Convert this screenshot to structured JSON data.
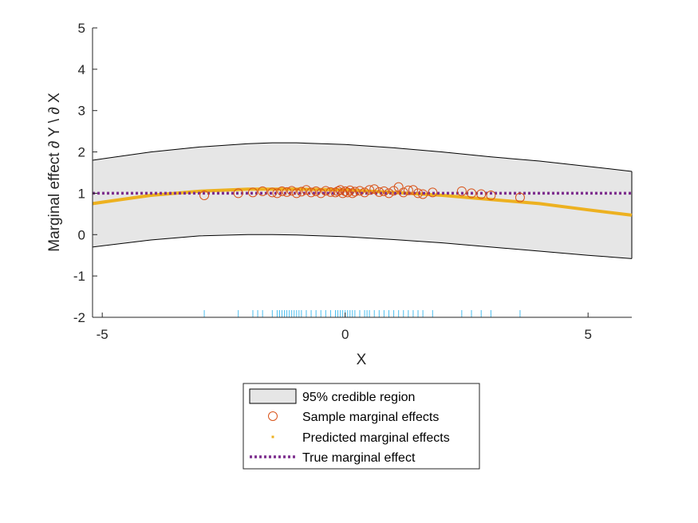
{
  "chart_data": {
    "type": "line",
    "xlabel": "X",
    "ylabel": "Marginal effect ∂ Y \\ ∂ X",
    "xlim": [
      -5.2,
      5.9
    ],
    "ylim": [
      -2,
      5
    ],
    "xticks": [
      -5,
      0,
      5
    ],
    "xtick_labels": [
      "-5",
      "0",
      "5"
    ],
    "yticks": [
      -2,
      -1,
      0,
      1,
      2,
      3,
      4,
      5
    ],
    "ytick_labels": [
      "-2",
      "-1",
      "0",
      "1",
      "2",
      "3",
      "4",
      "5"
    ],
    "grid": false,
    "legend_position": "bottom-center",
    "legend": [
      "95% credible region",
      "Sample marginal effects",
      "Predicted marginal effects",
      "True marginal effect"
    ],
    "colors": {
      "credible_region_fill": "#e6e6e6",
      "credible_region_edge": "#000000",
      "samples": "#d95319",
      "predicted": "#edb120",
      "true_effect": "#7e2f8e",
      "rug": "#4dbeee"
    },
    "credible_region": {
      "x": [
        -5.2,
        -4,
        -3,
        -2,
        -1.5,
        -1,
        0,
        1,
        2,
        3,
        4,
        5,
        5.9
      ],
      "upper": [
        1.8,
        2.0,
        2.12,
        2.2,
        2.22,
        2.22,
        2.18,
        2.1,
        2.0,
        1.88,
        1.78,
        1.65,
        1.53
      ],
      "lower": [
        -0.3,
        -0.13,
        -0.03,
        0.0,
        0.0,
        -0.01,
        -0.05,
        -0.12,
        -0.2,
        -0.3,
        -0.4,
        -0.5,
        -0.58
      ]
    },
    "series": [
      {
        "name": "Predicted marginal effects",
        "type": "line",
        "x": [
          -5.2,
          -4,
          -3,
          -2,
          -1,
          0,
          1,
          2,
          3,
          4,
          5,
          5.9
        ],
        "y": [
          0.75,
          0.95,
          1.05,
          1.1,
          1.1,
          1.08,
          1.02,
          0.95,
          0.85,
          0.75,
          0.6,
          0.47
        ]
      },
      {
        "name": "True marginal effect",
        "type": "line",
        "x": [
          -5.2,
          5.9
        ],
        "y": [
          1.0,
          1.0
        ]
      },
      {
        "name": "Sample marginal effects",
        "type": "scatter",
        "x": [
          -2.9,
          -2.2,
          -1.9,
          -1.7,
          -1.5,
          -1.4,
          -1.3,
          -1.2,
          -1.1,
          -1.0,
          -0.9,
          -0.8,
          -0.7,
          -0.6,
          -0.5,
          -0.4,
          -0.3,
          -0.2,
          -0.15,
          -0.1,
          -0.05,
          0.0,
          0.05,
          0.1,
          0.15,
          0.2,
          0.3,
          0.4,
          0.5,
          0.6,
          0.7,
          0.8,
          0.9,
          1.0,
          1.1,
          1.2,
          1.3,
          1.4,
          1.5,
          1.6,
          1.8,
          2.4,
          2.6,
          2.8,
          3.0,
          3.6
        ],
        "y": [
          0.95,
          1.0,
          1.02,
          1.05,
          1.02,
          1.0,
          1.05,
          1.03,
          1.06,
          1.0,
          1.04,
          1.08,
          1.02,
          1.05,
          1.0,
          1.06,
          1.03,
          1.02,
          1.05,
          1.08,
          1.0,
          1.05,
          1.02,
          1.07,
          1.0,
          1.04,
          1.06,
          1.02,
          1.08,
          1.1,
          1.03,
          1.05,
          1.0,
          1.06,
          1.15,
          1.02,
          1.07,
          1.08,
          1.0,
          0.98,
          1.02,
          1.05,
          1.0,
          0.98,
          0.95,
          0.9
        ]
      }
    ],
    "rug_x": [
      -2.9,
      -2.2,
      -1.9,
      -1.8,
      -1.7,
      -1.5,
      -1.4,
      -1.35,
      -1.3,
      -1.25,
      -1.2,
      -1.15,
      -1.1,
      -1.05,
      -1.0,
      -0.95,
      -0.9,
      -0.8,
      -0.7,
      -0.6,
      -0.5,
      -0.4,
      -0.3,
      -0.2,
      -0.15,
      -0.1,
      -0.05,
      0.0,
      0.05,
      0.1,
      0.15,
      0.2,
      0.3,
      0.4,
      0.45,
      0.5,
      0.6,
      0.7,
      0.8,
      0.9,
      1.0,
      1.1,
      1.2,
      1.3,
      1.4,
      1.5,
      1.6,
      1.8,
      2.4,
      2.6,
      2.8,
      3.0,
      3.6
    ]
  }
}
